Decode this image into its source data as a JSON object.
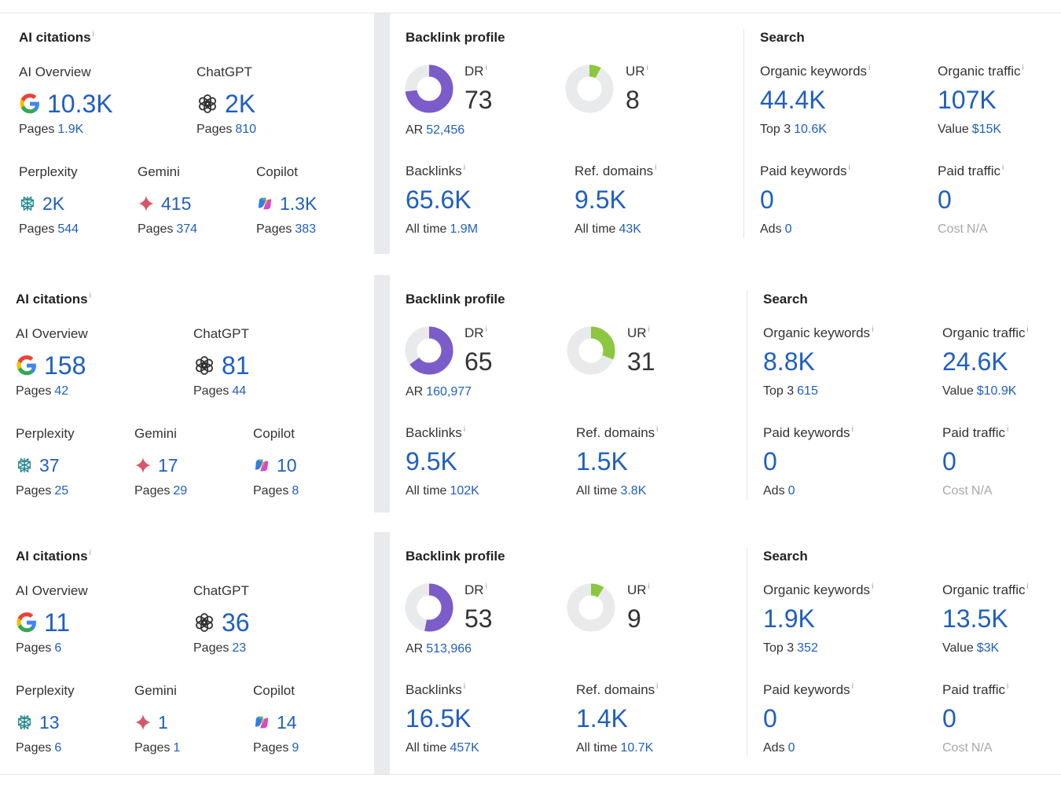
{
  "colors": {
    "accent_blue": "#1f5fbf",
    "dr_purple": "#7b5cc9",
    "ur_green": "#8dc63f",
    "ring_gray": "#e9eaec"
  },
  "icons": [
    "google-icon",
    "openai-icon",
    "perplexity-icon",
    "gemini-icon",
    "copilot-icon",
    "info-icon"
  ],
  "cards": [
    {
      "ai": {
        "title": "AI citations",
        "overview": {
          "label": "AI Overview",
          "value": "10.3K",
          "pages_label": "Pages",
          "pages": "1.9K"
        },
        "chatgpt": {
          "label": "ChatGPT",
          "value": "2K",
          "pages_label": "Pages",
          "pages": "810"
        },
        "perplexity": {
          "label": "Perplexity",
          "value": "2K",
          "pages_label": "Pages",
          "pages": "544"
        },
        "gemini": {
          "label": "Gemini",
          "value": "415",
          "pages_label": "Pages",
          "pages": "374"
        },
        "copilot": {
          "label": "Copilot",
          "value": "1.3K",
          "pages_label": "Pages",
          "pages": "383"
        }
      },
      "backlink": {
        "title": "Backlink profile",
        "dr": {
          "label": "DR",
          "value": "73",
          "fraction": 0.73
        },
        "ur": {
          "label": "UR",
          "value": "8",
          "fraction": 0.08
        },
        "ar_label": "AR",
        "ar": "52,456",
        "backlinks": {
          "label": "Backlinks",
          "value": "65.6K",
          "sub_label": "All time",
          "sub": "1.9M"
        },
        "refdomains": {
          "label": "Ref. domains",
          "value": "9.5K",
          "sub_label": "All time",
          "sub": "43K"
        }
      },
      "search": {
        "title": "Search",
        "organic_keywords": {
          "label": "Organic keywords",
          "value": "44.4K",
          "sub_label": "Top 3",
          "sub": "10.6K"
        },
        "organic_traffic": {
          "label": "Organic traffic",
          "value": "107K",
          "sub_label": "Value",
          "sub": "$15K"
        },
        "paid_keywords": {
          "label": "Paid keywords",
          "value": "0",
          "sub_label": "Ads",
          "sub": "0"
        },
        "paid_traffic": {
          "label": "Paid traffic",
          "value": "0",
          "sub_label": "Cost",
          "sub": "N/A"
        }
      }
    },
    {
      "ai": {
        "title": "AI citations",
        "overview": {
          "label": "AI Overview",
          "value": "158",
          "pages_label": "Pages",
          "pages": "42"
        },
        "chatgpt": {
          "label": "ChatGPT",
          "value": "81",
          "pages_label": "Pages",
          "pages": "44"
        },
        "perplexity": {
          "label": "Perplexity",
          "value": "37",
          "pages_label": "Pages",
          "pages": "25"
        },
        "gemini": {
          "label": "Gemini",
          "value": "17",
          "pages_label": "Pages",
          "pages": "29"
        },
        "copilot": {
          "label": "Copilot",
          "value": "10",
          "pages_label": "Pages",
          "pages": "8"
        }
      },
      "backlink": {
        "title": "Backlink profile",
        "dr": {
          "label": "DR",
          "value": "65",
          "fraction": 0.65
        },
        "ur": {
          "label": "UR",
          "value": "31",
          "fraction": 0.31
        },
        "ar_label": "AR",
        "ar": "160,977",
        "backlinks": {
          "label": "Backlinks",
          "value": "9.5K",
          "sub_label": "All time",
          "sub": "102K"
        },
        "refdomains": {
          "label": "Ref. domains",
          "value": "1.5K",
          "sub_label": "All time",
          "sub": "3.8K"
        }
      },
      "search": {
        "title": "Search",
        "organic_keywords": {
          "label": "Organic keywords",
          "value": "8.8K",
          "sub_label": "Top 3",
          "sub": "615"
        },
        "organic_traffic": {
          "label": "Organic traffic",
          "value": "24.6K",
          "sub_label": "Value",
          "sub": "$10.9K"
        },
        "paid_keywords": {
          "label": "Paid keywords",
          "value": "0",
          "sub_label": "Ads",
          "sub": "0"
        },
        "paid_traffic": {
          "label": "Paid traffic",
          "value": "0",
          "sub_label": "Cost",
          "sub": "N/A"
        }
      }
    },
    {
      "ai": {
        "title": "AI citations",
        "overview": {
          "label": "AI Overview",
          "value": "11",
          "pages_label": "Pages",
          "pages": "6"
        },
        "chatgpt": {
          "label": "ChatGPT",
          "value": "36",
          "pages_label": "Pages",
          "pages": "23"
        },
        "perplexity": {
          "label": "Perplexity",
          "value": "13",
          "pages_label": "Pages",
          "pages": "6"
        },
        "gemini": {
          "label": "Gemini",
          "value": "1",
          "pages_label": "Pages",
          "pages": "1"
        },
        "copilot": {
          "label": "Copilot",
          "value": "14",
          "pages_label": "Pages",
          "pages": "9"
        }
      },
      "backlink": {
        "title": "Backlink profile",
        "dr": {
          "label": "DR",
          "value": "53",
          "fraction": 0.53
        },
        "ur": {
          "label": "UR",
          "value": "9",
          "fraction": 0.09
        },
        "ar_label": "AR",
        "ar": "513,966",
        "backlinks": {
          "label": "Backlinks",
          "value": "16.5K",
          "sub_label": "All time",
          "sub": "457K"
        },
        "refdomains": {
          "label": "Ref. domains",
          "value": "1.4K",
          "sub_label": "All time",
          "sub": "10.7K"
        }
      },
      "search": {
        "title": "Search",
        "organic_keywords": {
          "label": "Organic keywords",
          "value": "1.9K",
          "sub_label": "Top 3",
          "sub": "352"
        },
        "organic_traffic": {
          "label": "Organic traffic",
          "value": "13.5K",
          "sub_label": "Value",
          "sub": "$3K"
        },
        "paid_keywords": {
          "label": "Paid keywords",
          "value": "0",
          "sub_label": "Ads",
          "sub": "0"
        },
        "paid_traffic": {
          "label": "Paid traffic",
          "value": "0",
          "sub_label": "Cost",
          "sub": "N/A"
        }
      }
    }
  ]
}
